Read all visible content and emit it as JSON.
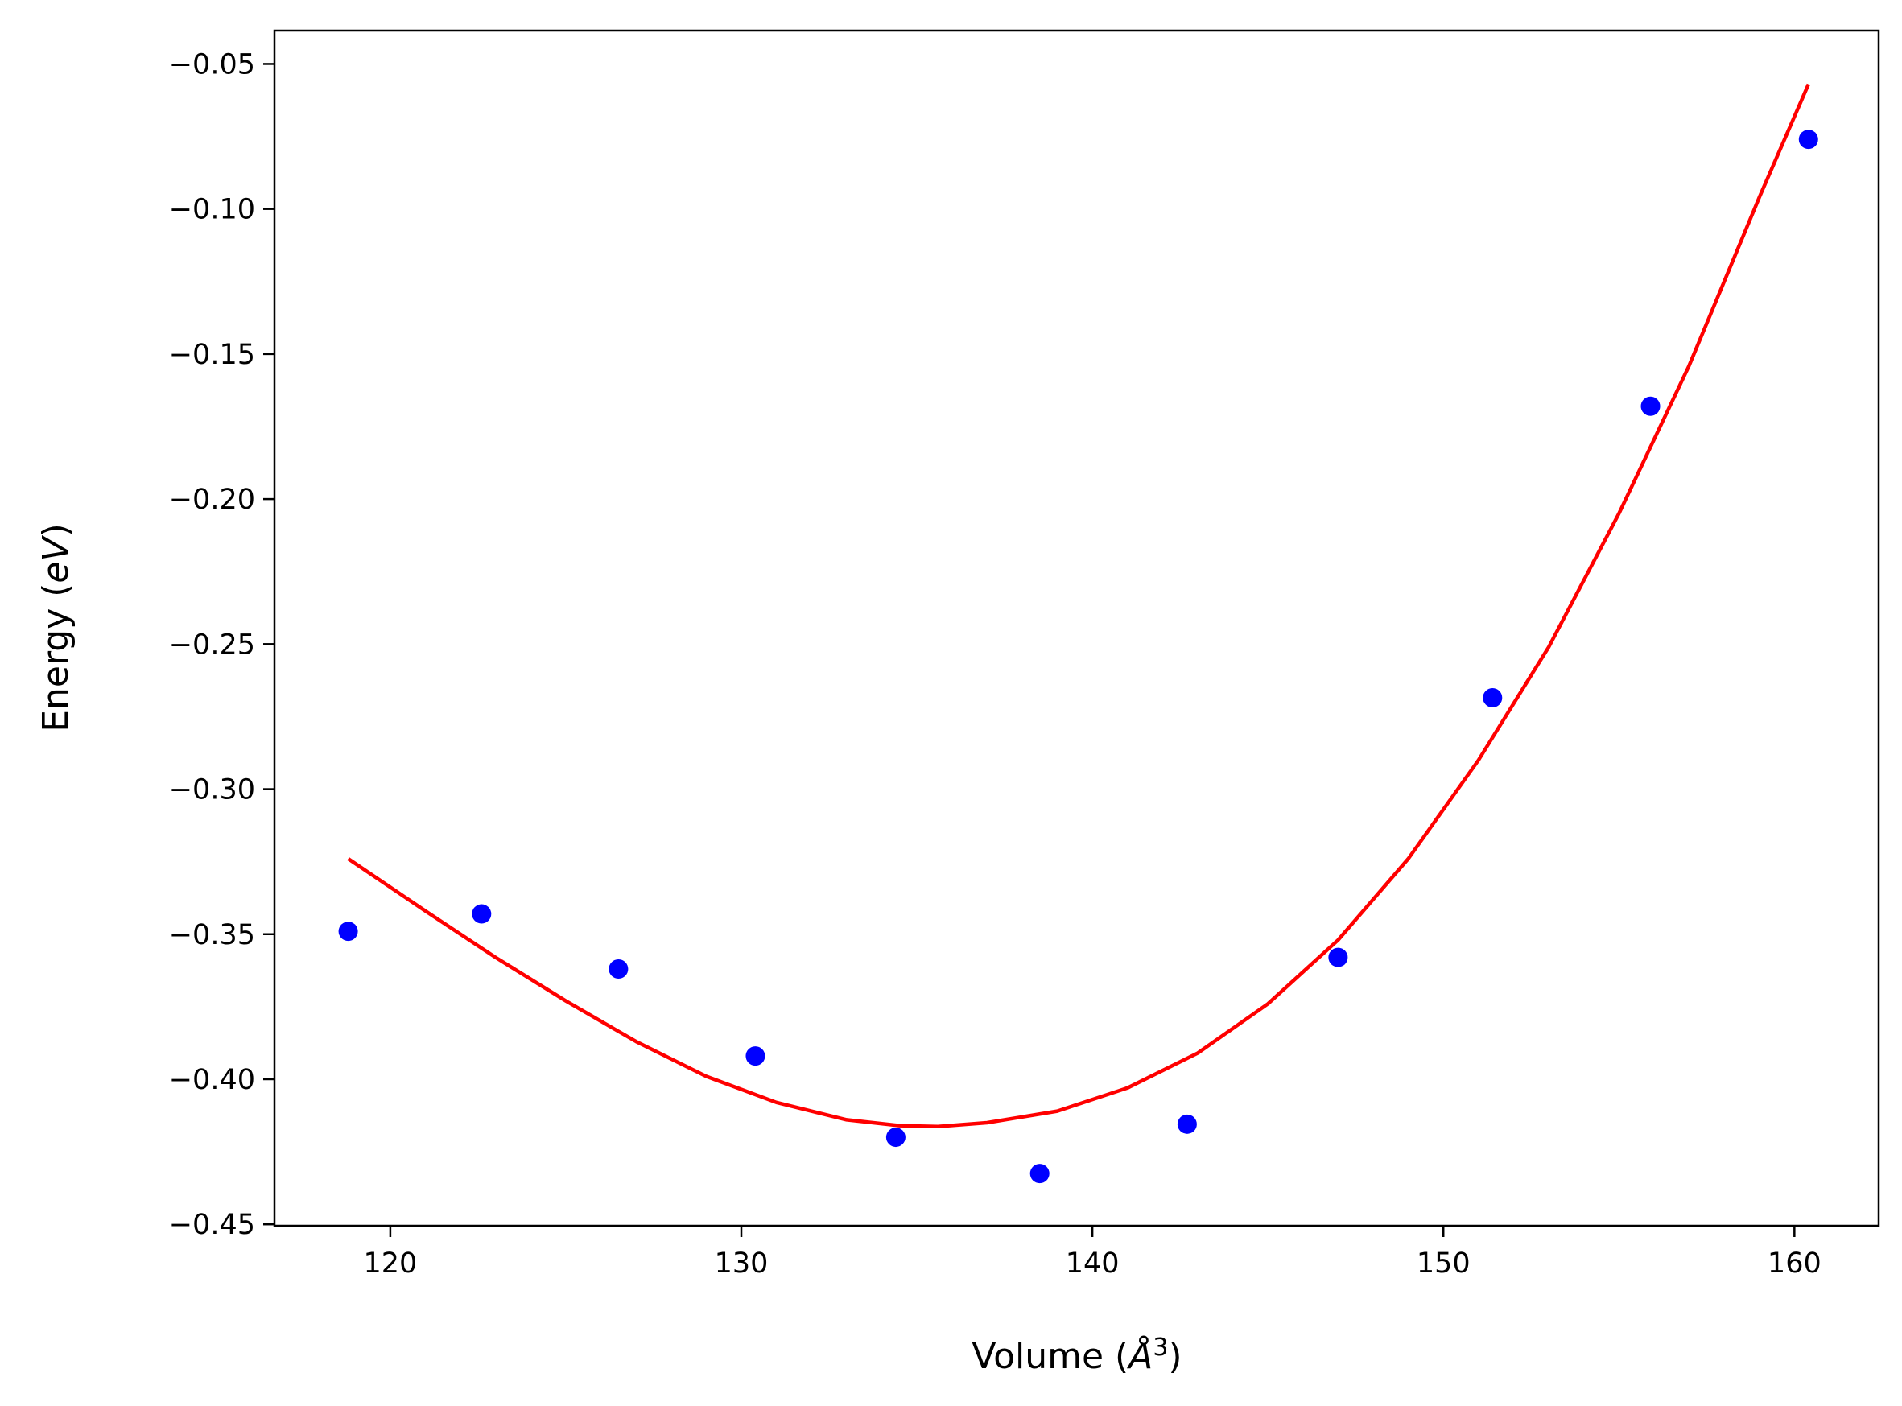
{
  "chart_data": {
    "type": "scatter",
    "xlabel": {
      "text": "Volume (",
      "math": "Å",
      "sup": "3",
      "close": ")"
    },
    "ylabel": {
      "text": "Energy (",
      "math": "eV",
      "close": ")"
    },
    "xlim": [
      116.7,
      162.4
    ],
    "ylim": [
      -0.4505,
      -0.0385
    ],
    "x_ticks": [
      120,
      130,
      140,
      150,
      160
    ],
    "x_tick_labels": [
      "120",
      "130",
      "140",
      "150",
      "160"
    ],
    "y_ticks": [
      -0.05,
      -0.1,
      -0.15,
      -0.2,
      -0.25,
      -0.3,
      -0.35,
      -0.4,
      -0.45
    ],
    "y_tick_labels": [
      "−0.05",
      "−0.10",
      "−0.15",
      "−0.20",
      "−0.25",
      "−0.30",
      "−0.35",
      "−0.40",
      "−0.45"
    ],
    "grid": false,
    "series": [
      {
        "kind": "scatter",
        "color": "#0000ff",
        "x": [
          118.8,
          122.6,
          126.5,
          130.4,
          134.4,
          138.5,
          142.7,
          147.0,
          151.4,
          155.9,
          160.4
        ],
        "y": [
          -0.349,
          -0.343,
          -0.362,
          -0.392,
          -0.42,
          -0.4325,
          -0.4155,
          -0.358,
          -0.2685,
          -0.168,
          -0.076
        ]
      },
      {
        "kind": "line",
        "color": "#ff0000",
        "x": [
          118.8,
          121.0,
          123.0,
          125.0,
          127.0,
          129.0,
          131.0,
          133.0,
          134.5,
          135.6,
          137.0,
          139.0,
          141.0,
          143.0,
          145.0,
          147.0,
          149.0,
          151.0,
          153.0,
          155.0,
          157.0,
          159.0,
          160.4
        ],
        "y": [
          -0.324,
          -0.342,
          -0.358,
          -0.373,
          -0.387,
          -0.399,
          -0.408,
          -0.414,
          -0.416,
          -0.4163,
          -0.415,
          -0.411,
          -0.403,
          -0.391,
          -0.374,
          -0.352,
          -0.324,
          -0.29,
          -0.251,
          -0.205,
          -0.154,
          -0.096,
          -0.057
        ]
      }
    ]
  }
}
